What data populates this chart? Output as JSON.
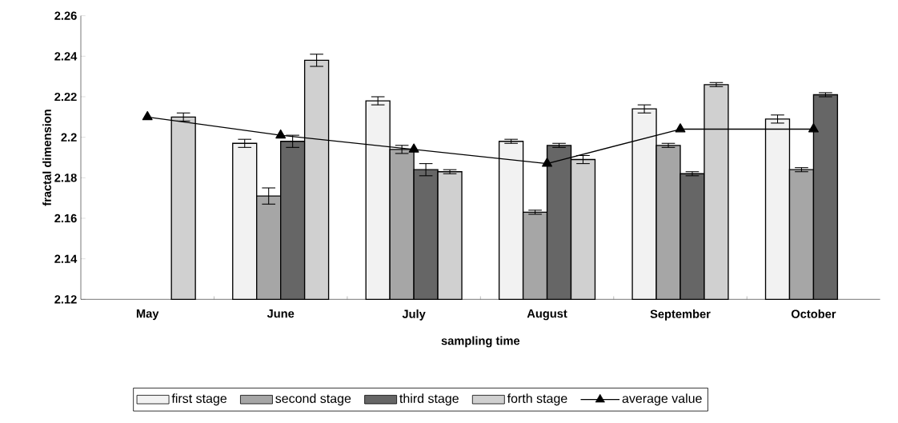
{
  "chart_data": {
    "type": "bar",
    "xlabel": "sampling time",
    "ylabel": "fractal dimension",
    "categories": [
      "May",
      "June",
      "July",
      "August",
      "September",
      "October"
    ],
    "series": [
      {
        "name": "first stage",
        "color": "#f2f2f2",
        "values": [
          null,
          2.197,
          2.218,
          2.198,
          2.214,
          2.209
        ],
        "errors": [
          null,
          0.002,
          0.002,
          0.001,
          0.002,
          0.002
        ]
      },
      {
        "name": "second stage",
        "color": "#a6a6a6",
        "values": [
          null,
          2.171,
          2.194,
          2.163,
          2.196,
          2.184
        ],
        "errors": [
          null,
          0.004,
          0.002,
          0.001,
          0.001,
          0.001
        ]
      },
      {
        "name": "third stage",
        "color": "#666666",
        "values": [
          null,
          2.198,
          2.184,
          2.196,
          2.182,
          2.221
        ],
        "errors": [
          null,
          0.003,
          0.003,
          0.001,
          0.001,
          0.001
        ]
      },
      {
        "name": "forth stage",
        "color": "#d0d0d0",
        "values": [
          2.21,
          2.238,
          2.183,
          2.189,
          2.226,
          null
        ],
        "errors": [
          0.002,
          0.003,
          0.001,
          0.002,
          0.001,
          null
        ]
      },
      {
        "name": "average value",
        "type": "line",
        "color": "#000000",
        "marker": "triangle",
        "values": [
          2.21,
          2.201,
          2.194,
          2.187,
          2.204,
          2.204
        ]
      }
    ],
    "ylim": [
      2.12,
      2.26
    ],
    "yticks": [
      2.12,
      2.14,
      2.16,
      2.18,
      2.2,
      2.22,
      2.24,
      2.26
    ],
    "legend": "bottom"
  }
}
